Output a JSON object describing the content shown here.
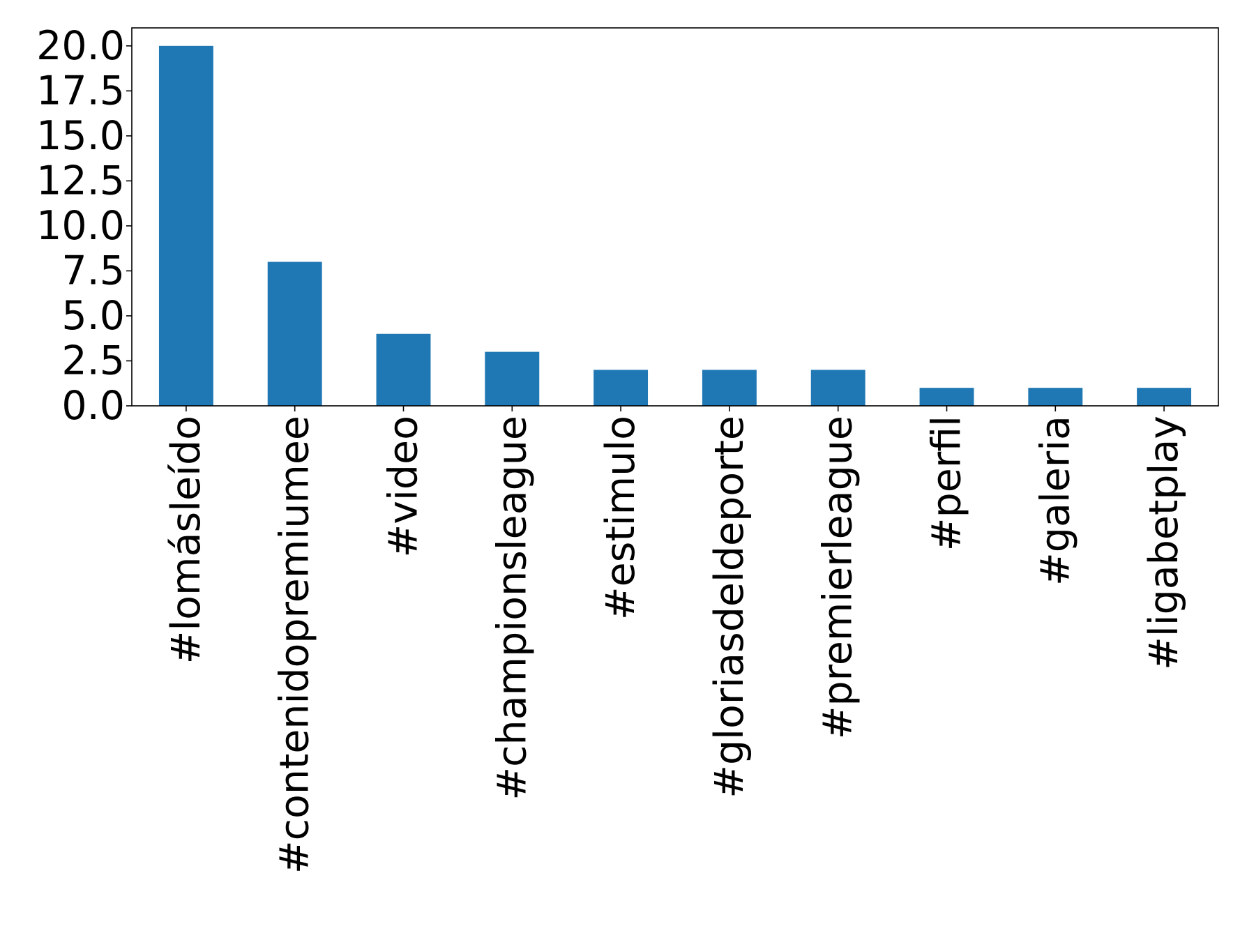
{
  "chart_data": {
    "type": "bar",
    "title": "",
    "xlabel": "",
    "ylabel": "",
    "categories": [
      "#lomásleído",
      "#contenidopremiumee",
      "#video",
      "#championsleague",
      "#estimulo",
      "#gloriasdeldeporte",
      "#premierleague",
      "#perfil",
      "#galeria",
      "#ligabetplay"
    ],
    "values": [
      20,
      8,
      4,
      3,
      2,
      2,
      2,
      1,
      1,
      1
    ],
    "ylim": [
      0,
      21
    ],
    "yticks": [
      "0.0",
      "2.5",
      "5.0",
      "7.5",
      "10.0",
      "12.5",
      "15.0",
      "17.5",
      "20.0"
    ],
    "grid": false,
    "legend": "none",
    "bar_color": "#1f77b4"
  }
}
